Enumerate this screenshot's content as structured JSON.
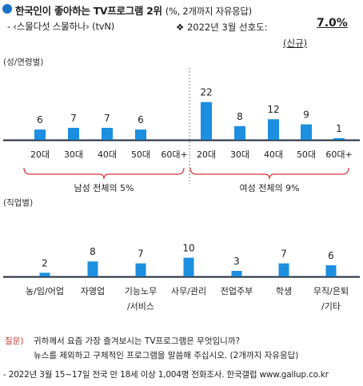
{
  "header": {
    "title": "한국인이 좋아하는 TV프로그램 2위",
    "title_unit": "(%, 2개까지 자유응답)",
    "subtitle": "- ‹스물다섯 스물하나› (tvN)",
    "pref_label": "❖  2022년 3월 선호도:",
    "pref_value": "7.0%",
    "new_tag": "(신규)"
  },
  "colors": {
    "bar": "#1d8fe0",
    "bracket": "#d8343b",
    "axis": "#1e2a3a",
    "accent": "#1a73c9"
  },
  "chart_data": [
    {
      "type": "bar",
      "section_label": "(성/연령별)",
      "categories": [
        "20대",
        "30대",
        "40대",
        "50대",
        "60대+",
        "20대",
        "30대",
        "40대",
        "50대",
        "60대+"
      ],
      "values": [
        6,
        7,
        7,
        6,
        null,
        22,
        8,
        12,
        9,
        1
      ],
      "groups": [
        {
          "label": "남성 전체의 5%",
          "from": 0,
          "to": 4
        },
        {
          "label": "여성 전체의 9%",
          "from": 5,
          "to": 9
        }
      ]
    },
    {
      "type": "bar",
      "section_label": "(직업별)",
      "categories": [
        [
          "농/임/어업"
        ],
        [
          "자영업"
        ],
        [
          "기능노무",
          "/서비스"
        ],
        [
          "사무/관리"
        ],
        [
          "전업주부"
        ],
        [
          "학생"
        ],
        [
          "무직/은퇴",
          "/기타"
        ]
      ],
      "values": [
        2,
        8,
        7,
        10,
        3,
        7,
        6
      ]
    }
  ],
  "notes": {
    "q_label": "질문)",
    "q_line1": "귀하께서 요즘 가장 즐겨보시는 TV프로그램은 무엇입니까?",
    "q_line2": "뉴스를 제외하고 구체적인 프로그램을 말씀해 주십시오. (2개까지 자유응답)",
    "footer": "- 2022년 3월 15~17일 전국 만 18세 이상 1,004명 전화조사. 한국갤럽 www.gallup.co.kr"
  }
}
